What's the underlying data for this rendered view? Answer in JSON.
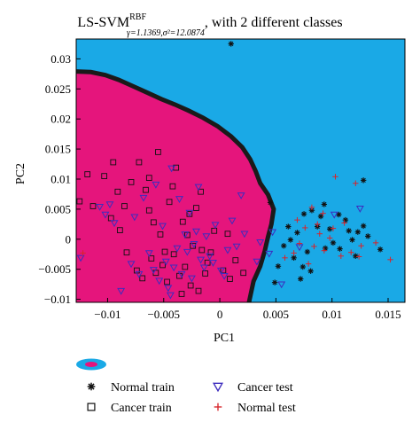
{
  "chart_data": {
    "type": "scatter",
    "title": {
      "main": "LS-SVM",
      "superscript": "RBF",
      "subscript": "γ=1.1369,σ²=12.0874",
      "suffix": ", with 2 different classes"
    },
    "xlabel": "PC1",
    "ylabel": "PC2",
    "xlim": [
      -0.0128,
      0.0165
    ],
    "ylim": [
      -0.0105,
      0.0333
    ],
    "xticks": [
      -0.01,
      -0.005,
      0,
      0.005,
      0.01,
      0.015
    ],
    "xtick_labels": [
      "−0.01",
      "−0.005",
      "0",
      "0.005",
      "0.01",
      "0.015"
    ],
    "yticks": [
      -0.01,
      -0.005,
      0,
      0.005,
      0.01,
      0.015,
      0.02,
      0.025,
      0.03
    ],
    "ytick_labels": [
      "−0.01",
      "−0.005",
      "0",
      "0.005",
      "0.01",
      "0.015",
      "0.02",
      "0.025",
      "0.03"
    ],
    "region_colors": {
      "normal": "#1aa9e6",
      "cancer": "#e5157c",
      "boundary": "#1a1a1a"
    },
    "decision_boundary": [
      [
        -0.0128,
        0.0279
      ],
      [
        -0.0115,
        0.0278
      ],
      [
        -0.0102,
        0.0273
      ],
      [
        -0.009,
        0.0265
      ],
      [
        -0.0078,
        0.0255
      ],
      [
        -0.0065,
        0.0244
      ],
      [
        -0.0052,
        0.0233
      ],
      [
        -0.004,
        0.0224
      ],
      [
        -0.0028,
        0.0214
      ],
      [
        -0.0015,
        0.0202
      ],
      [
        -0.0002,
        0.0188
      ],
      [
        0.001,
        0.0171
      ],
      [
        0.002,
        0.0153
      ],
      [
        0.0027,
        0.0133
      ],
      [
        0.0032,
        0.0113
      ],
      [
        0.0036,
        0.0093
      ],
      [
        0.0043,
        0.0074
      ],
      [
        0.0048,
        0.005
      ],
      [
        0.0046,
        0.0025
      ],
      [
        0.0043,
        0.0004
      ],
      [
        0.004,
        -0.002
      ],
      [
        0.0036,
        -0.0045
      ],
      [
        0.003,
        -0.007
      ],
      [
        0.0026,
        -0.0105
      ]
    ],
    "series": [
      {
        "name": "Normal train",
        "marker": "asterisk",
        "color": "#111111",
        "points": [
          [
            0.001,
            0.0325
          ],
          [
            0.0075,
            0.0042
          ],
          [
            0.0082,
            0.0048
          ],
          [
            0.009,
            0.0038
          ],
          [
            0.0098,
            0.0017
          ],
          [
            0.0112,
            0.0032
          ],
          [
            0.0101,
            -0.0006
          ],
          [
            0.0107,
            -0.0016
          ],
          [
            0.0118,
            -0.0001
          ],
          [
            0.0123,
            0.0012
          ],
          [
            0.0128,
            0.0022
          ],
          [
            0.0132,
            0.0005
          ],
          [
            0.0128,
            0.0098
          ],
          [
            0.0069,
            0.0011
          ],
          [
            0.0063,
            -0.0001
          ],
          [
            0.0057,
            -0.0011
          ],
          [
            0.0066,
            -0.0031
          ],
          [
            0.0074,
            -0.0046
          ],
          [
            0.0081,
            -0.0053
          ],
          [
            0.0052,
            -0.0045
          ],
          [
            0.0049,
            -0.0072
          ],
          [
            0.0087,
            0.0021
          ],
          [
            0.0094,
            -0.0015
          ],
          [
            0.0121,
            -0.0028
          ],
          [
            0.0143,
            -0.0017
          ],
          [
            0.0061,
            0.0021
          ],
          [
            0.0045,
            0.0061
          ],
          [
            0.0115,
            0.0014
          ],
          [
            0.0078,
            -0.0021
          ],
          [
            0.0106,
            0.0041
          ],
          [
            0.0072,
            -0.0066
          ],
          [
            0.0093,
            0.0058
          ]
        ]
      },
      {
        "name": "Cancer train",
        "marker": "square",
        "color": "#111111",
        "points": [
          [
            -0.0125,
            0.0063
          ],
          [
            -0.0118,
            0.0108
          ],
          [
            -0.0103,
            0.0105
          ],
          [
            -0.0113,
            0.0055
          ],
          [
            -0.0097,
            0.0035
          ],
          [
            -0.0091,
            0.0079
          ],
          [
            -0.0085,
            0.0055
          ],
          [
            -0.0079,
            0.0095
          ],
          [
            -0.0072,
            0.0128
          ],
          [
            -0.0066,
            0.0082
          ],
          [
            -0.0063,
            0.0048
          ],
          [
            -0.0059,
            0.0028
          ],
          [
            -0.0053,
            0.0008
          ],
          [
            -0.0049,
            -0.0021
          ],
          [
            -0.0045,
            0.0062
          ],
          [
            -0.0042,
            0.0088
          ],
          [
            -0.0039,
            0.0119
          ],
          [
            -0.0033,
            0.0029
          ],
          [
            -0.0029,
            0.0007
          ],
          [
            -0.0024,
            -0.0011
          ],
          [
            -0.0021,
            0.0052
          ],
          [
            -0.0017,
            0.0079
          ],
          [
            -0.0011,
            -0.0039
          ],
          [
            -0.0008,
            -0.0022
          ],
          [
            -0.0005,
            0.0014
          ],
          [
            0.0003,
            -0.0052
          ],
          [
            0.0009,
            -0.0066
          ],
          [
            0.0014,
            -0.0035
          ],
          [
            0.0021,
            -0.0056
          ],
          [
            -0.0074,
            -0.0052
          ],
          [
            -0.0069,
            -0.0065
          ],
          [
            -0.0061,
            -0.0032
          ],
          [
            -0.0057,
            -0.0056
          ],
          [
            -0.0051,
            -0.0043
          ],
          [
            -0.0047,
            -0.0071
          ],
          [
            -0.0036,
            -0.0061
          ],
          [
            -0.0031,
            -0.0046
          ],
          [
            -0.0026,
            -0.0077
          ],
          [
            -0.0016,
            -0.0018
          ],
          [
            -0.0013,
            -0.0057
          ],
          [
            -0.0083,
            -0.0022
          ],
          [
            -0.0089,
            0.0015
          ],
          [
            -0.0041,
            -0.0025
          ],
          [
            -0.0027,
            0.0042
          ],
          [
            0.0007,
            0.0009
          ],
          [
            -0.0063,
            0.0102
          ],
          [
            -0.0095,
            0.0128
          ],
          [
            -0.0034,
            -0.0091
          ],
          [
            -0.0019,
            -0.0086
          ],
          [
            -0.0055,
            0.0145
          ]
        ]
      },
      {
        "name": "Cancer test",
        "marker": "triangle-down",
        "color": "#3d2cbe",
        "points": [
          [
            -0.0124,
            -0.0031
          ],
          [
            -0.0107,
            0.0054
          ],
          [
            -0.0102,
            0.0041
          ],
          [
            -0.0098,
            0.0058
          ],
          [
            -0.0094,
            0.0027
          ],
          [
            -0.0088,
            -0.0086
          ],
          [
            -0.0079,
            -0.0041
          ],
          [
            -0.0072,
            -0.0058
          ],
          [
            -0.0068,
            0.0069
          ],
          [
            -0.0063,
            -0.0023
          ],
          [
            -0.0059,
            -0.0051
          ],
          [
            -0.0057,
            0.0091
          ],
          [
            -0.0054,
            -0.0069
          ],
          [
            -0.0051,
            0.0022
          ],
          [
            -0.0048,
            -0.0037
          ],
          [
            -0.0046,
            -0.0081
          ],
          [
            -0.0043,
            0.0118
          ],
          [
            -0.0041,
            -0.0047
          ],
          [
            -0.0038,
            -0.0015
          ],
          [
            -0.0036,
            0.0067
          ],
          [
            -0.0034,
            -0.0058
          ],
          [
            -0.0031,
            0.0008
          ],
          [
            -0.0029,
            -0.0021
          ],
          [
            -0.0027,
            0.0044
          ],
          [
            -0.0025,
            -0.0065
          ],
          [
            -0.0023,
            -0.0008
          ],
          [
            -0.0021,
            0.0013
          ],
          [
            -0.0019,
            0.0087
          ],
          [
            -0.0017,
            -0.0034
          ],
          [
            -0.0014,
            -0.0047
          ],
          [
            -0.0012,
            0.0005
          ],
          [
            -0.0009,
            -0.0028
          ],
          [
            -0.0006,
            -0.0039
          ],
          [
            -0.0004,
            0.0024
          ],
          [
            0.0001,
            -0.0052
          ],
          [
            0.0004,
            -0.0061
          ],
          [
            0.0007,
            -0.0018
          ],
          [
            0.0011,
            0.0031
          ],
          [
            0.0015,
            -0.0012
          ],
          [
            0.0019,
            0.0073
          ],
          [
            0.0022,
            0.0009
          ],
          [
            0.0033,
            -0.0037
          ],
          [
            0.0036,
            -0.0005
          ],
          [
            0.0044,
            -0.0024
          ],
          [
            0.0102,
            0.0041
          ],
          [
            0.0125,
            0.0051
          ],
          [
            0.0071,
            -0.0013
          ],
          [
            0.0047,
            0.0012
          ],
          [
            0.0055,
            -0.0075
          ],
          [
            -0.0076,
            0.0037
          ],
          [
            -0.0044,
            -0.0093
          ]
        ]
      },
      {
        "name": "Normal test",
        "marker": "plus",
        "color": "#d8242a",
        "points": [
          [
            -0.0122,
            -0.0023
          ],
          [
            0.0103,
            0.0104
          ],
          [
            0.0121,
            0.0093
          ],
          [
            0.0082,
            0.0053
          ],
          [
            0.0092,
            0.0043
          ],
          [
            0.0111,
            0.0027
          ],
          [
            0.0076,
            0.0019
          ],
          [
            0.0089,
            0.0009
          ],
          [
            0.0098,
            0.0002
          ],
          [
            0.0071,
            -0.0007
          ],
          [
            0.0084,
            -0.0012
          ],
          [
            0.0093,
            -0.0019
          ],
          [
            0.0108,
            -0.0028
          ],
          [
            0.0117,
            -0.0022
          ],
          [
            0.0126,
            -0.0011
          ],
          [
            0.0139,
            -0.0006
          ],
          [
            0.0152,
            -0.0034
          ],
          [
            0.0066,
            -0.0023
          ],
          [
            0.0058,
            -0.0031
          ],
          [
            0.0079,
            -0.0041
          ],
          [
            0.0124,
            -0.0029
          ],
          [
            0.0101,
            0.0018
          ],
          [
            0.0069,
            0.0032
          ],
          [
            0.0087,
            0.0025
          ]
        ]
      }
    ],
    "legend_placement": "bottom"
  }
}
